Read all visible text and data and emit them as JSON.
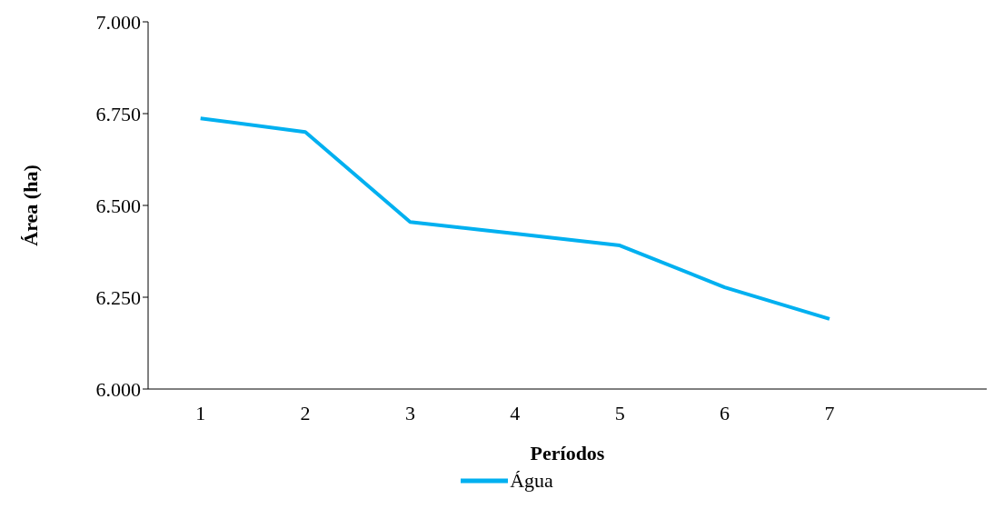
{
  "chart_data": {
    "type": "line",
    "xlabel": "Períodos",
    "ylabel": "Área (ha)",
    "categories": [
      "1",
      "2",
      "3",
      "4",
      "5",
      "6",
      "7",
      null
    ],
    "series": [
      {
        "name": "Água",
        "color": "#00b0f0",
        "values": [
          6737,
          6700,
          6455,
          6423,
          6391,
          6277,
          6191,
          null
        ]
      }
    ],
    "ylim": [
      6000,
      7000
    ],
    "yticks": [
      {
        "value": 6000,
        "label": "6.000"
      },
      {
        "value": 6250,
        "label": "6.250"
      },
      {
        "value": 6500,
        "label": "6.500"
      },
      {
        "value": 6750,
        "label": "6.750"
      },
      {
        "value": 7000,
        "label": "7.000"
      }
    ],
    "grid": false,
    "legend": "bottom",
    "marker": "none",
    "line_style": "solid"
  }
}
